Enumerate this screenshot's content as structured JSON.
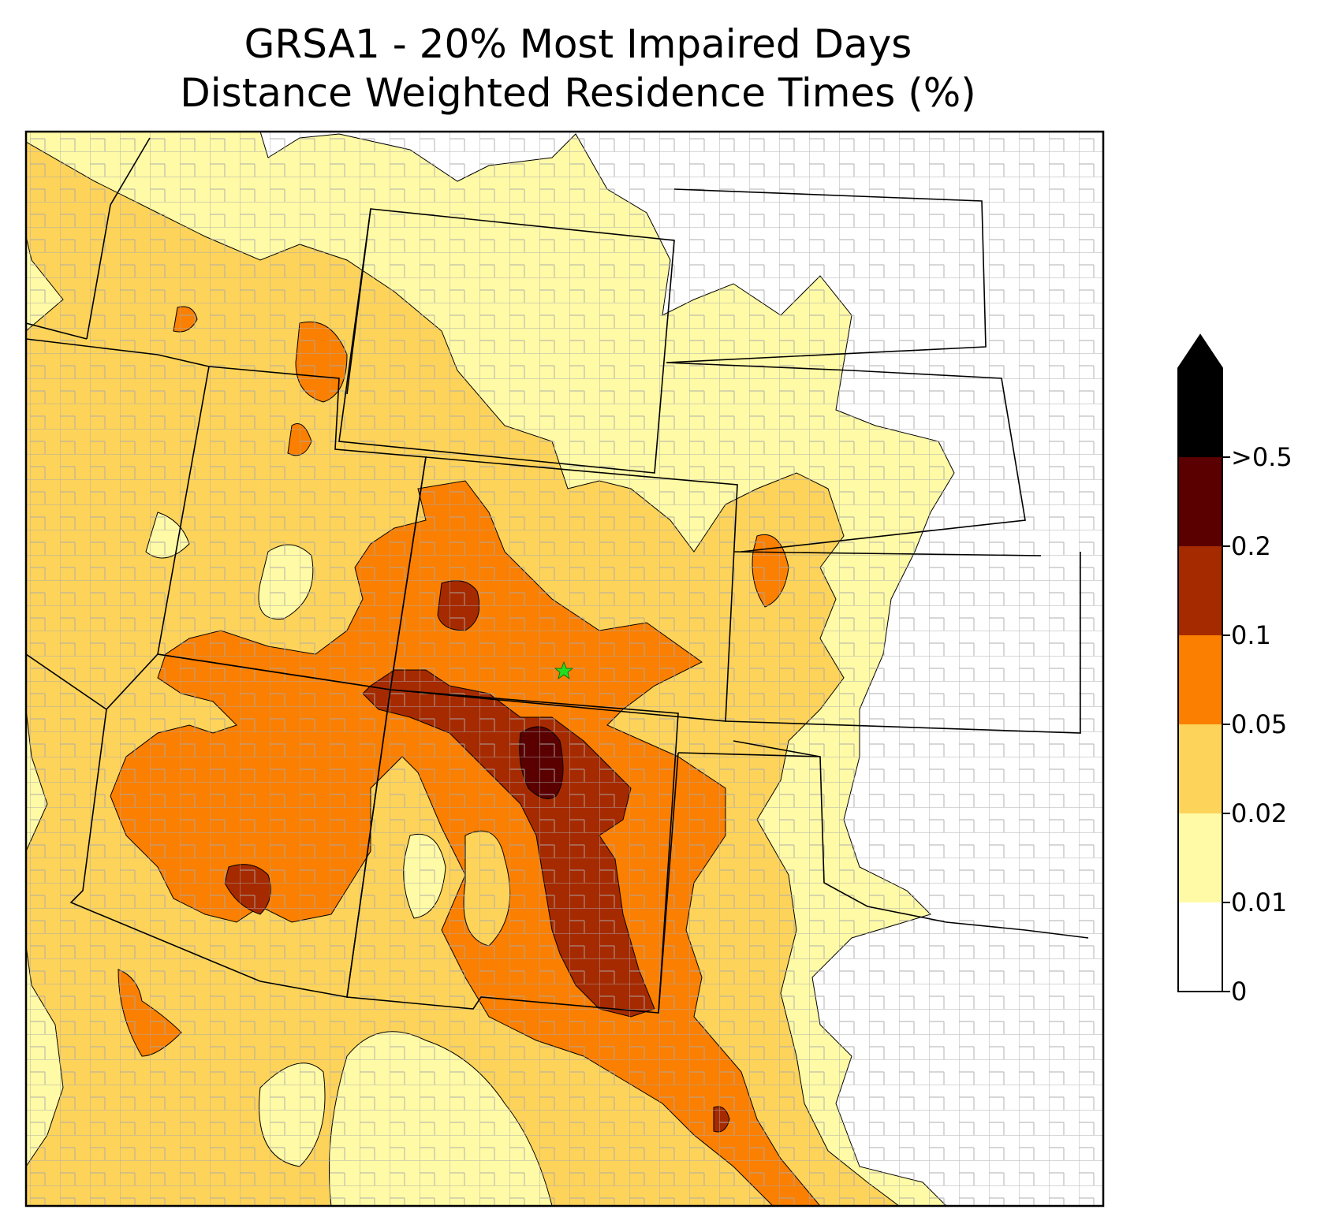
{
  "title": {
    "line1": "GRSA1 - 20% Most Impaired Days",
    "line2": "Distance Weighted Residence Times (%)"
  },
  "colorbar": {
    "levels": [
      {
        "label": "0",
        "color": "#ffffff"
      },
      {
        "label": "0.01",
        "color": "#fffaa6"
      },
      {
        "label": "0.02",
        "color": "#fdd35a"
      },
      {
        "label": "0.05",
        "color": "#fb7f00"
      },
      {
        "label": "0.1",
        "color": "#a62a00"
      },
      {
        "label": "0.2",
        "color": "#5a0000"
      },
      {
        "label": ">0.5",
        "color": "#000000"
      }
    ],
    "extend": "max"
  },
  "map": {
    "site_marker": {
      "name": "GRSA1",
      "symbol": "star",
      "color": "#22dd22"
    },
    "county_line_color": "#aaaaaa",
    "state_line_color": "#000000"
  }
}
